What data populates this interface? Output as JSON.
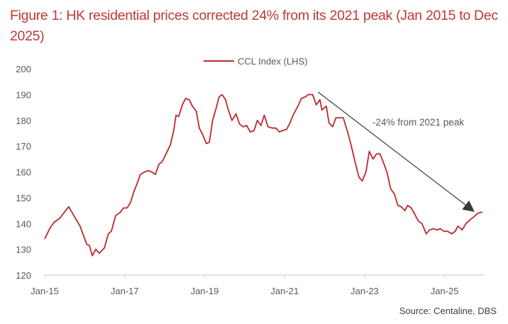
{
  "title": "Figure 1: HK residential prices corrected 24% from its 2021 peak (Jan 2015 to Dec 2025)",
  "source": "Source: Centaline, DBS",
  "colors": {
    "series": "#c0272d",
    "title": "#c0373a",
    "axis": "#d9d9d9",
    "arrow": "#3a3a3a"
  },
  "chart_data": {
    "type": "line",
    "title": "Figure 1: HK residential prices corrected 24% from its 2021 peak (Jan 2015 to Dec 2025)",
    "xlabel": "",
    "ylabel": "",
    "ylim": [
      120,
      200
    ],
    "yticks": [
      120,
      130,
      140,
      150,
      160,
      170,
      180,
      190,
      200
    ],
    "xticks": [
      {
        "label": "Jan-15",
        "month": 0
      },
      {
        "label": "Jan-17",
        "month": 24
      },
      {
        "label": "Jan-19",
        "month": 48
      },
      {
        "label": "Jan-21",
        "month": 72
      },
      {
        "label": "Jan-23",
        "month": 96
      },
      {
        "label": "Jan-25",
        "month": 120
      }
    ],
    "x_range_months": [
      0,
      132
    ],
    "x_unit": "months since Jan 2015",
    "grid": false,
    "legend": {
      "position": "top-center",
      "entries": [
        "CCL Index (LHS)"
      ]
    },
    "series": [
      {
        "name": "CCL Index (LHS)",
        "points": [
          [
            0,
            134
          ],
          [
            1.5,
            138
          ],
          [
            2.8,
            140.5
          ],
          [
            4.5,
            142
          ],
          [
            7.2,
            146.5
          ],
          [
            10.6,
            139
          ],
          [
            12.6,
            132
          ],
          [
            13.4,
            131.5
          ],
          [
            14.3,
            127.5
          ],
          [
            15.3,
            130
          ],
          [
            16.4,
            128.5
          ],
          [
            17.9,
            130.5
          ],
          [
            19.1,
            136
          ],
          [
            20,
            137
          ],
          [
            21.3,
            143
          ],
          [
            22.8,
            144.5
          ],
          [
            23.6,
            146
          ],
          [
            24.7,
            146
          ],
          [
            25.7,
            148
          ],
          [
            26.8,
            152.5
          ],
          [
            27.9,
            156
          ],
          [
            28.7,
            159
          ],
          [
            30,
            160
          ],
          [
            31.1,
            160.5
          ],
          [
            32.1,
            160
          ],
          [
            33.2,
            159
          ],
          [
            34.3,
            163
          ],
          [
            35.3,
            164
          ],
          [
            36.6,
            167.5
          ],
          [
            37.7,
            170.5
          ],
          [
            38.7,
            176
          ],
          [
            39.4,
            182
          ],
          [
            40.2,
            181.5
          ],
          [
            41.3,
            186
          ],
          [
            42.3,
            188.5
          ],
          [
            43.4,
            188
          ],
          [
            44.3,
            185.5
          ],
          [
            45.5,
            183.5
          ],
          [
            46.4,
            177
          ],
          [
            47.4,
            174.5
          ],
          [
            48.5,
            171
          ],
          [
            49.4,
            171.5
          ],
          [
            50.4,
            180
          ],
          [
            51.5,
            185
          ],
          [
            52.3,
            189
          ],
          [
            53.2,
            190
          ],
          [
            54.3,
            188
          ],
          [
            55.1,
            184
          ],
          [
            56.2,
            180
          ],
          [
            57.4,
            182.5
          ],
          [
            58.5,
            178.5
          ],
          [
            59.6,
            177.5
          ],
          [
            60.6,
            178
          ],
          [
            61.7,
            175.5
          ],
          [
            62.8,
            176
          ],
          [
            63.8,
            180
          ],
          [
            64.9,
            178
          ],
          [
            65.9,
            182
          ],
          [
            67,
            177.5
          ],
          [
            68.3,
            177
          ],
          [
            69.4,
            177
          ],
          [
            70.4,
            175.5
          ],
          [
            71.3,
            176
          ],
          [
            72.6,
            176.5
          ],
          [
            73.6,
            179
          ],
          [
            74.7,
            182.5
          ],
          [
            76,
            185.5
          ],
          [
            77,
            188.5
          ],
          [
            78.1,
            189
          ],
          [
            79.1,
            190
          ],
          [
            80.4,
            190
          ],
          [
            81.5,
            186
          ],
          [
            82.6,
            188
          ],
          [
            83.2,
            184
          ],
          [
            84.5,
            185.5
          ],
          [
            85.3,
            179
          ],
          [
            86.4,
            177.5
          ],
          [
            87.4,
            181
          ],
          [
            88.7,
            181
          ],
          [
            89.6,
            181
          ],
          [
            90.9,
            175.5
          ],
          [
            92.1,
            169.5
          ],
          [
            93.2,
            163.5
          ],
          [
            94.3,
            158
          ],
          [
            95.3,
            156.5
          ],
          [
            96.4,
            160
          ],
          [
            97.4,
            168
          ],
          [
            98.5,
            165
          ],
          [
            99.6,
            167
          ],
          [
            100.6,
            167
          ],
          [
            101.7,
            163.5
          ],
          [
            102.8,
            159.5
          ],
          [
            103.8,
            153.5
          ],
          [
            104.9,
            151.5
          ],
          [
            106,
            147
          ],
          [
            107,
            146.5
          ],
          [
            108.1,
            145
          ],
          [
            108.9,
            147
          ],
          [
            110,
            146
          ],
          [
            111.1,
            143.5
          ],
          [
            112.1,
            141
          ],
          [
            113.2,
            140
          ],
          [
            114.5,
            136
          ],
          [
            115.5,
            137.5
          ],
          [
            116.6,
            138
          ],
          [
            117.7,
            137.5
          ],
          [
            118.7,
            138
          ],
          [
            119.8,
            137
          ],
          [
            120.9,
            137
          ],
          [
            122.1,
            136
          ],
          [
            123.2,
            137
          ],
          [
            124,
            139
          ],
          [
            125.3,
            137.5
          ],
          [
            126.4,
            140
          ],
          [
            127.7,
            141.5
          ],
          [
            128.7,
            142.5
          ],
          [
            130,
            144
          ],
          [
            131.3,
            144.5
          ]
        ]
      }
    ],
    "annotations": [
      {
        "text": "-24% from 2021 peak",
        "type": "arrow",
        "from": {
          "month": 82,
          "value": 191
        },
        "to": {
          "month": 129,
          "value": 144.5
        }
      }
    ]
  }
}
